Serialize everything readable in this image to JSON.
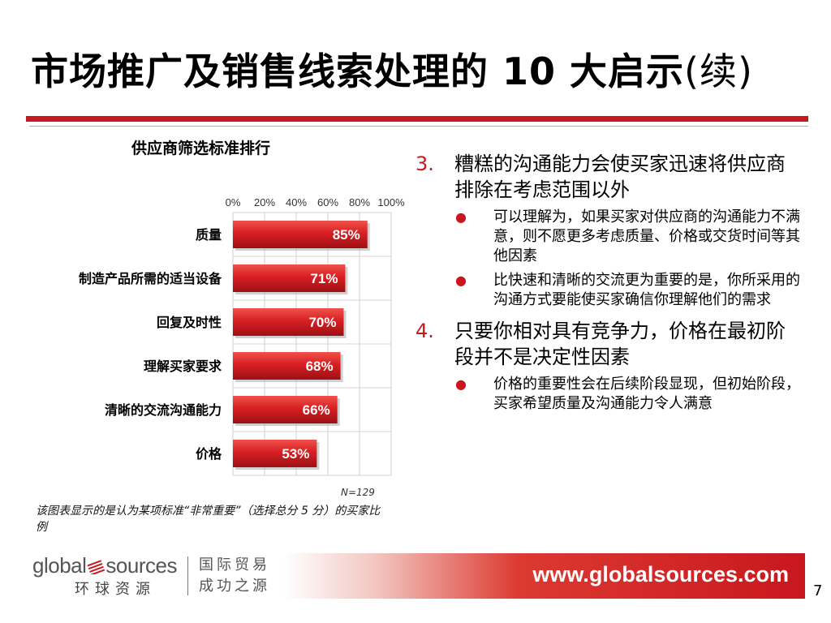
{
  "slide": {
    "title": "市场推广及销售线索处理的 10 大启示",
    "title_suffix": "(续)",
    "page_number": "7"
  },
  "chart_data": {
    "type": "bar",
    "orientation": "horizontal",
    "title": "供应商筛选标准排行",
    "categories": [
      "质量",
      "制造产品所需的适当设备",
      "回复及时性",
      "理解买家要求",
      "清晰的交流沟通能力",
      "价格"
    ],
    "values": [
      85,
      71,
      70,
      68,
      66,
      53
    ],
    "value_labels": [
      "85%",
      "71%",
      "70%",
      "68%",
      "66%",
      "53%"
    ],
    "xlim": [
      0,
      100
    ],
    "xticks": [
      0,
      20,
      40,
      60,
      80,
      100
    ],
    "xtick_labels": [
      "0%",
      "20%",
      "40%",
      "60%",
      "80%",
      "100%"
    ],
    "bar_color": "#c8171f",
    "grid": true,
    "note": "N=129",
    "footnote": "该图表显示的是认为某项标准“非常重要”（选择总分 5 分）的买家比例"
  },
  "points": [
    {
      "number": "3.",
      "text": "糟糕的沟通能力会使买家迅速将供应商排除在考虑范围以外",
      "subs": [
        "可以理解为，如果买家对供应商的沟通能力不满意，则不愿更多考虑质量、价格或交货时间等其他因素",
        "比快速和清晰的交流更为重要的是，你所采用的沟通方式要能使买家确信你理解他们的需求"
      ]
    },
    {
      "number": "4.",
      "text": "只要你相对具有竞争力，价格在最初阶段并不是决定性因素",
      "subs": [
        "价格的重要性会在后续阶段显现，但初始阶段，买家希望质量及沟通能力令人满意"
      ]
    }
  ],
  "footer": {
    "logo_en_left": "global",
    "logo_en_right": "sources",
    "logo_cn": "环球资源",
    "slogan_line1": "国际贸易",
    "slogan_line2": "成功之源",
    "url": "www.globalsources.com"
  },
  "colors": {
    "accent": "#c8171f",
    "bullet": "#c8171f"
  }
}
